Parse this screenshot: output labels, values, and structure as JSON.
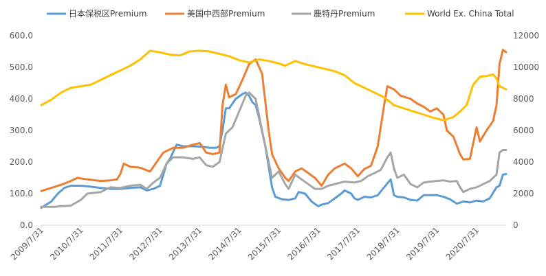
{
  "chart_data": {
    "type": "line",
    "title": "",
    "xlabel": "",
    "ylabel_left": "",
    "ylabel_right": "",
    "grid": false,
    "legend_position": "top",
    "x_range": [
      "2009-07-31",
      "2021-04-30"
    ],
    "x_ticks": [
      "2009/7/31",
      "2010/7/31",
      "2011/7/31",
      "2012/7/31",
      "2013/7/31",
      "2014/7/31",
      "2015/7/31",
      "2016/7/31",
      "2017/7/31",
      "2018/7/31",
      "2019/7/31",
      "2020/7/31"
    ],
    "y_left": {
      "min": 0,
      "max": 600,
      "ticks": [
        "0.0",
        "100.0",
        "200.0",
        "300.0",
        "400.0",
        "500.0",
        "600.0"
      ]
    },
    "y_right": {
      "min": 0,
      "max": 12000,
      "ticks": [
        "0",
        "2000",
        "4000",
        "6000",
        "8000",
        "10000",
        "12000"
      ]
    },
    "series": [
      {
        "name": "日本保税区Premium",
        "axis": "left",
        "color": "#5B9BD5",
        "points": [
          [
            "2009-07-31",
            55
          ],
          [
            "2009-10-31",
            75
          ],
          [
            "2009-12-31",
            100
          ],
          [
            "2010-02-28",
            118
          ],
          [
            "2010-04-30",
            125
          ],
          [
            "2010-07-31",
            125
          ],
          [
            "2010-10-31",
            122
          ],
          [
            "2011-01-31",
            118
          ],
          [
            "2011-04-30",
            115
          ],
          [
            "2011-07-31",
            115
          ],
          [
            "2011-10-31",
            118
          ],
          [
            "2012-01-31",
            120
          ],
          [
            "2012-03-31",
            110
          ],
          [
            "2012-05-31",
            115
          ],
          [
            "2012-07-31",
            125
          ],
          [
            "2012-09-30",
            195
          ],
          [
            "2012-10-31",
            210
          ],
          [
            "2012-12-31",
            255
          ],
          [
            "2013-02-28",
            250
          ],
          [
            "2013-05-31",
            250
          ],
          [
            "2013-08-31",
            248
          ],
          [
            "2013-10-31",
            245
          ],
          [
            "2013-12-31",
            245
          ],
          [
            "2014-01-31",
            250
          ],
          [
            "2014-02-28",
            300
          ],
          [
            "2014-03-31",
            370
          ],
          [
            "2014-04-30",
            370
          ],
          [
            "2014-06-30",
            400
          ],
          [
            "2014-08-31",
            415
          ],
          [
            "2014-09-30",
            420
          ],
          [
            "2014-10-31",
            410
          ],
          [
            "2014-11-30",
            390
          ],
          [
            "2014-12-31",
            380
          ],
          [
            "2015-01-31",
            340
          ],
          [
            "2015-03-31",
            250
          ],
          [
            "2015-05-31",
            120
          ],
          [
            "2015-06-30",
            90
          ],
          [
            "2015-08-31",
            82
          ],
          [
            "2015-10-31",
            80
          ],
          [
            "2015-12-31",
            85
          ],
          [
            "2016-01-31",
            105
          ],
          [
            "2016-03-31",
            100
          ],
          [
            "2016-05-31",
            75
          ],
          [
            "2016-07-31",
            60
          ],
          [
            "2016-08-31",
            65
          ],
          [
            "2016-10-31",
            70
          ],
          [
            "2016-12-31",
            85
          ],
          [
            "2017-02-28",
            100
          ],
          [
            "2017-03-31",
            110
          ],
          [
            "2017-05-31",
            100
          ],
          [
            "2017-06-30",
            85
          ],
          [
            "2017-07-31",
            80
          ],
          [
            "2017-09-30",
            90
          ],
          [
            "2017-11-30",
            88
          ],
          [
            "2018-01-31",
            95
          ],
          [
            "2018-03-31",
            120
          ],
          [
            "2018-05-31",
            145
          ],
          [
            "2018-06-30",
            95
          ],
          [
            "2018-07-31",
            90
          ],
          [
            "2018-09-30",
            88
          ],
          [
            "2018-11-30",
            80
          ],
          [
            "2019-01-31",
            78
          ],
          [
            "2019-03-31",
            95
          ],
          [
            "2019-05-31",
            95
          ],
          [
            "2019-07-31",
            95
          ],
          [
            "2019-09-30",
            90
          ],
          [
            "2019-11-30",
            82
          ],
          [
            "2019-12-31",
            75
          ],
          [
            "2020-01-31",
            68
          ],
          [
            "2020-03-31",
            75
          ],
          [
            "2020-05-31",
            72
          ],
          [
            "2020-07-31",
            78
          ],
          [
            "2020-09-30",
            75
          ],
          [
            "2020-11-30",
            85
          ],
          [
            "2021-01-31",
            120
          ],
          [
            "2021-02-28",
            125
          ],
          [
            "2021-03-31",
            160
          ],
          [
            "2021-04-30",
            162
          ]
        ]
      },
      {
        "name": "美国中西部Premium",
        "axis": "left",
        "color": "#ED7D31",
        "points": [
          [
            "2009-07-31",
            108
          ],
          [
            "2009-10-31",
            118
          ],
          [
            "2010-01-31",
            128
          ],
          [
            "2010-04-30",
            140
          ],
          [
            "2010-06-30",
            150
          ],
          [
            "2010-09-30",
            145
          ],
          [
            "2011-01-31",
            140
          ],
          [
            "2011-04-30",
            142
          ],
          [
            "2011-06-30",
            145
          ],
          [
            "2011-07-31",
            162
          ],
          [
            "2011-08-31",
            195
          ],
          [
            "2011-10-31",
            185
          ],
          [
            "2012-01-31",
            182
          ],
          [
            "2012-04-30",
            170
          ],
          [
            "2012-06-30",
            200
          ],
          [
            "2012-08-31",
            230
          ],
          [
            "2012-11-30",
            245
          ],
          [
            "2013-02-28",
            245
          ],
          [
            "2013-05-31",
            255
          ],
          [
            "2013-07-31",
            260
          ],
          [
            "2013-09-30",
            230
          ],
          [
            "2013-11-30",
            225
          ],
          [
            "2014-01-31",
            230
          ],
          [
            "2014-02-28",
            380
          ],
          [
            "2014-03-31",
            445
          ],
          [
            "2014-04-30",
            405
          ],
          [
            "2014-06-30",
            415
          ],
          [
            "2014-08-31",
            460
          ],
          [
            "2014-10-31",
            510
          ],
          [
            "2014-12-31",
            525
          ],
          [
            "2015-02-28",
            480
          ],
          [
            "2015-04-30",
            300
          ],
          [
            "2015-05-31",
            225
          ],
          [
            "2015-07-31",
            180
          ],
          [
            "2015-09-30",
            150
          ],
          [
            "2015-10-31",
            140
          ],
          [
            "2015-12-31",
            170
          ],
          [
            "2016-02-28",
            180
          ],
          [
            "2016-04-30",
            165
          ],
          [
            "2016-06-30",
            150
          ],
          [
            "2016-08-31",
            125
          ],
          [
            "2016-10-31",
            160
          ],
          [
            "2016-12-31",
            180
          ],
          [
            "2017-03-31",
            195
          ],
          [
            "2017-05-31",
            180
          ],
          [
            "2017-07-31",
            155
          ],
          [
            "2017-09-30",
            178
          ],
          [
            "2017-11-30",
            188
          ],
          [
            "2018-01-31",
            250
          ],
          [
            "2018-03-31",
            380
          ],
          [
            "2018-04-30",
            440
          ],
          [
            "2018-06-30",
            430
          ],
          [
            "2018-08-31",
            410
          ],
          [
            "2018-11-30",
            400
          ],
          [
            "2019-01-31",
            385
          ],
          [
            "2019-03-31",
            375
          ],
          [
            "2019-05-31",
            360
          ],
          [
            "2019-07-31",
            370
          ],
          [
            "2019-09-30",
            350
          ],
          [
            "2019-10-31",
            300
          ],
          [
            "2019-12-31",
            280
          ],
          [
            "2020-02-29",
            225
          ],
          [
            "2020-03-31",
            208
          ],
          [
            "2020-05-31",
            210
          ],
          [
            "2020-07-31",
            310
          ],
          [
            "2020-08-31",
            265
          ],
          [
            "2020-10-31",
            300
          ],
          [
            "2020-12-31",
            330
          ],
          [
            "2021-01-31",
            380
          ],
          [
            "2021-02-28",
            510
          ],
          [
            "2021-03-31",
            555
          ],
          [
            "2021-04-30",
            548
          ]
        ]
      },
      {
        "name": "鹿特丹Premium",
        "axis": "left",
        "color": "#A5A5A5",
        "points": [
          [
            "2009-07-31",
            58
          ],
          [
            "2009-11-30",
            58
          ],
          [
            "2010-01-31",
            60
          ],
          [
            "2010-04-30",
            62
          ],
          [
            "2010-07-31",
            80
          ],
          [
            "2010-09-30",
            100
          ],
          [
            "2011-01-31",
            105
          ],
          [
            "2011-04-30",
            120
          ],
          [
            "2011-07-31",
            118
          ],
          [
            "2011-10-31",
            125
          ],
          [
            "2012-01-31",
            128
          ],
          [
            "2012-03-31",
            115
          ],
          [
            "2012-05-31",
            135
          ],
          [
            "2012-07-31",
            150
          ],
          [
            "2012-09-30",
            195
          ],
          [
            "2012-11-30",
            215
          ],
          [
            "2013-02-28",
            215
          ],
          [
            "2013-05-31",
            210
          ],
          [
            "2013-07-31",
            215
          ],
          [
            "2013-09-30",
            190
          ],
          [
            "2013-11-30",
            185
          ],
          [
            "2014-01-31",
            200
          ],
          [
            "2014-03-31",
            290
          ],
          [
            "2014-05-31",
            310
          ],
          [
            "2014-07-31",
            360
          ],
          [
            "2014-09-30",
            410
          ],
          [
            "2014-10-31",
            420
          ],
          [
            "2014-12-31",
            400
          ],
          [
            "2015-02-28",
            300
          ],
          [
            "2015-04-30",
            200
          ],
          [
            "2015-05-31",
            150
          ],
          [
            "2015-07-31",
            170
          ],
          [
            "2015-09-30",
            130
          ],
          [
            "2015-10-31",
            115
          ],
          [
            "2015-12-31",
            160
          ],
          [
            "2016-02-28",
            145
          ],
          [
            "2016-04-30",
            130
          ],
          [
            "2016-06-30",
            115
          ],
          [
            "2016-08-31",
            115
          ],
          [
            "2016-10-31",
            125
          ],
          [
            "2016-12-31",
            130
          ],
          [
            "2017-03-31",
            138
          ],
          [
            "2017-06-30",
            135
          ],
          [
            "2017-08-31",
            140
          ],
          [
            "2017-10-31",
            155
          ],
          [
            "2017-12-31",
            165
          ],
          [
            "2018-02-28",
            175
          ],
          [
            "2018-04-30",
            215
          ],
          [
            "2018-05-31",
            230
          ],
          [
            "2018-06-30",
            180
          ],
          [
            "2018-07-31",
            150
          ],
          [
            "2018-09-30",
            160
          ],
          [
            "2018-11-30",
            130
          ],
          [
            "2019-01-31",
            120
          ],
          [
            "2019-03-31",
            135
          ],
          [
            "2019-05-31",
            138
          ],
          [
            "2019-07-31",
            140
          ],
          [
            "2019-09-30",
            142
          ],
          [
            "2019-11-30",
            138
          ],
          [
            "2020-01-31",
            140
          ],
          [
            "2020-02-29",
            120
          ],
          [
            "2020-03-31",
            105
          ],
          [
            "2020-05-31",
            115
          ],
          [
            "2020-07-31",
            120
          ],
          [
            "2020-09-30",
            130
          ],
          [
            "2020-11-30",
            140
          ],
          [
            "2021-01-31",
            160
          ],
          [
            "2021-02-28",
            230
          ],
          [
            "2021-03-31",
            238
          ],
          [
            "2021-04-30",
            238
          ]
        ]
      },
      {
        "name": "World Ex. China Total",
        "axis": "right",
        "color": "#FFC000",
        "points": [
          [
            "2009-07-31",
            7600
          ],
          [
            "2009-10-31",
            7950
          ],
          [
            "2010-01-31",
            8400
          ],
          [
            "2010-04-30",
            8700
          ],
          [
            "2010-07-31",
            8800
          ],
          [
            "2010-10-31",
            8900
          ],
          [
            "2011-01-31",
            9200
          ],
          [
            "2011-04-30",
            9500
          ],
          [
            "2011-07-31",
            9800
          ],
          [
            "2011-10-31",
            10100
          ],
          [
            "2012-01-31",
            10500
          ],
          [
            "2012-04-30",
            11050
          ],
          [
            "2012-07-31",
            10950
          ],
          [
            "2012-10-31",
            10800
          ],
          [
            "2013-01-31",
            10750
          ],
          [
            "2013-04-30",
            11000
          ],
          [
            "2013-07-31",
            11050
          ],
          [
            "2013-10-31",
            11000
          ],
          [
            "2014-01-31",
            10850
          ],
          [
            "2014-04-30",
            10700
          ],
          [
            "2014-07-31",
            10450
          ],
          [
            "2014-10-31",
            10300
          ],
          [
            "2015-01-31",
            10500
          ],
          [
            "2015-04-30",
            10400
          ],
          [
            "2015-07-31",
            10250
          ],
          [
            "2015-09-30",
            10100
          ],
          [
            "2015-12-31",
            10400
          ],
          [
            "2016-03-31",
            10200
          ],
          [
            "2016-06-30",
            10050
          ],
          [
            "2016-09-30",
            9900
          ],
          [
            "2016-12-31",
            9750
          ],
          [
            "2017-03-31",
            9500
          ],
          [
            "2017-06-30",
            9000
          ],
          [
            "2017-08-31",
            8800
          ],
          [
            "2017-10-31",
            8600
          ],
          [
            "2017-12-31",
            8400
          ],
          [
            "2018-03-31",
            8100
          ],
          [
            "2018-06-30",
            7600
          ],
          [
            "2018-09-30",
            7400
          ],
          [
            "2018-12-31",
            7200
          ],
          [
            "2019-03-31",
            7000
          ],
          [
            "2019-06-30",
            6800
          ],
          [
            "2019-09-30",
            6650
          ],
          [
            "2019-12-31",
            6850
          ],
          [
            "2020-02-29",
            7200
          ],
          [
            "2020-04-30",
            7600
          ],
          [
            "2020-06-30",
            8900
          ],
          [
            "2020-08-31",
            9400
          ],
          [
            "2020-10-31",
            9450
          ],
          [
            "2020-12-31",
            9550
          ],
          [
            "2021-01-31",
            9300
          ],
          [
            "2021-02-28",
            8800
          ],
          [
            "2021-04-30",
            8600
          ]
        ]
      }
    ]
  }
}
